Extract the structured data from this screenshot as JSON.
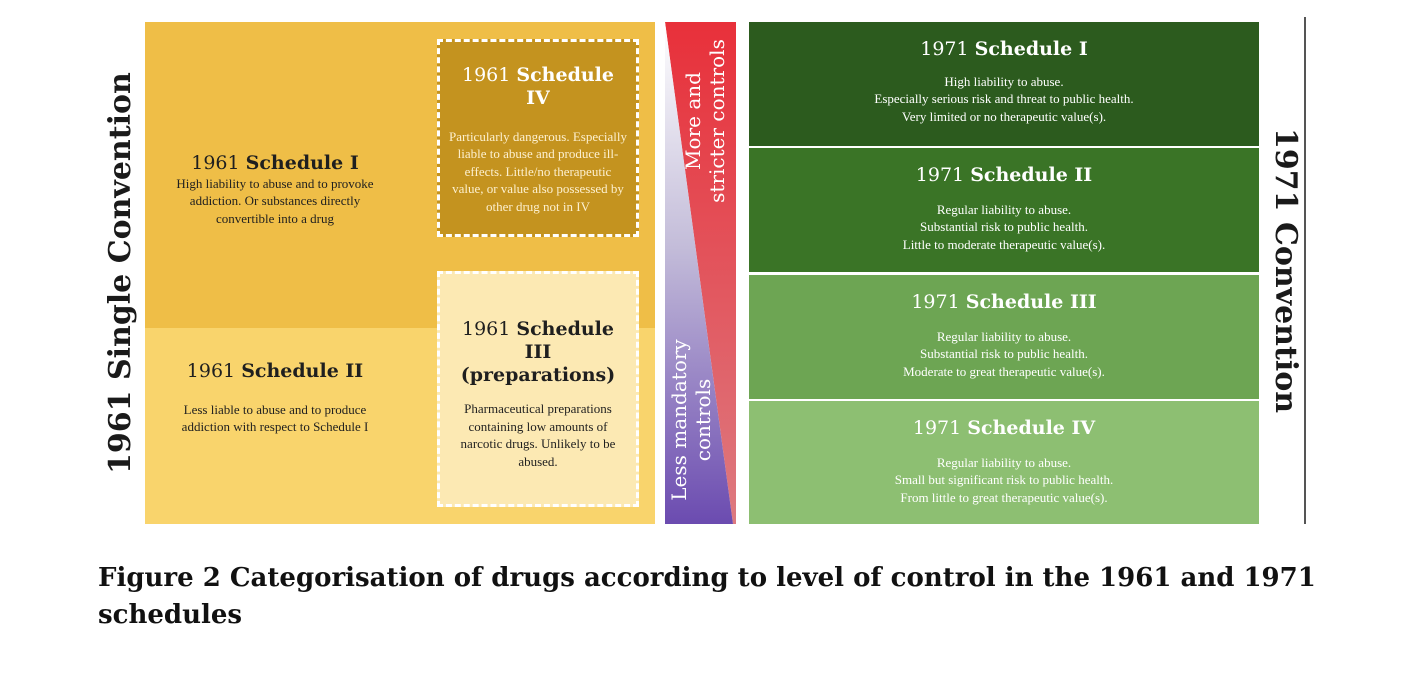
{
  "left": {
    "convention_title": "1961 Single Convention",
    "schedule_1": {
      "year": "1961",
      "name": "Schedule I",
      "description": "High liability to abuse and to provoke addiction. Or substances directly convertible into a drug"
    },
    "schedule_2": {
      "year": "1961",
      "name": "Schedule II",
      "description": "Less liable to abuse and to produce addiction with respect to Schedule I"
    },
    "schedule_4": {
      "year": "1961",
      "name": "Schedule IV",
      "description": "Particularly dangerous. Especially liable to abuse and produce ill-effects. Little/no therapeutic value, or value also possessed by other drug not in IV"
    },
    "schedule_3": {
      "year": "1961",
      "name": "Schedule III",
      "name_line2": "(preparations)",
      "description": "Pharmaceutical preparations containing low amounts of narcotic drugs. Unlikely to be abused."
    }
  },
  "middle": {
    "top_label_line1": "More and",
    "top_label_line2": "stricter controls",
    "bottom_label_line1": "Less mandatory",
    "bottom_label_line2": "controls"
  },
  "right": {
    "convention_title": "1971 Convention",
    "schedules": [
      {
        "year": "1971",
        "name": "Schedule I",
        "lines": [
          "High liability to abuse.",
          "Especially serious risk and threat to public health.",
          "Very limited or no therapeutic value(s)."
        ]
      },
      {
        "year": "1971",
        "name": "Schedule II",
        "lines": [
          "Regular liability to abuse.",
          "Substantial risk to public health.",
          "Little to moderate therapeutic value(s)."
        ]
      },
      {
        "year": "1971",
        "name": "Schedule III",
        "lines": [
          "Regular liability to abuse.",
          "Substantial risk to public health.",
          "Moderate to great therapeutic value(s)."
        ]
      },
      {
        "year": "1971",
        "name": "Schedule IV",
        "lines": [
          "Regular liability to abuse.",
          "Small but significant risk to public health.",
          "From little to great therapeutic value(s)."
        ]
      }
    ]
  },
  "caption": "Figure 2 Categorisation of drugs according to level of control in the 1961 and 1971 schedules",
  "colors": {
    "schedule_1961_I": "#efbe47",
    "schedule_1961_II": "#f9d46c",
    "schedule_1961_IV": "#c4931f",
    "schedule_1961_III": "#fce9b3",
    "more_controls_red": "#e8303a",
    "less_controls_purple": "#6b4bb0",
    "schedule_1971_I": "#2c5b1e",
    "schedule_1971_II": "#3a7426",
    "schedule_1971_III": "#6da553",
    "schedule_1971_IV": "#8dbf72"
  }
}
